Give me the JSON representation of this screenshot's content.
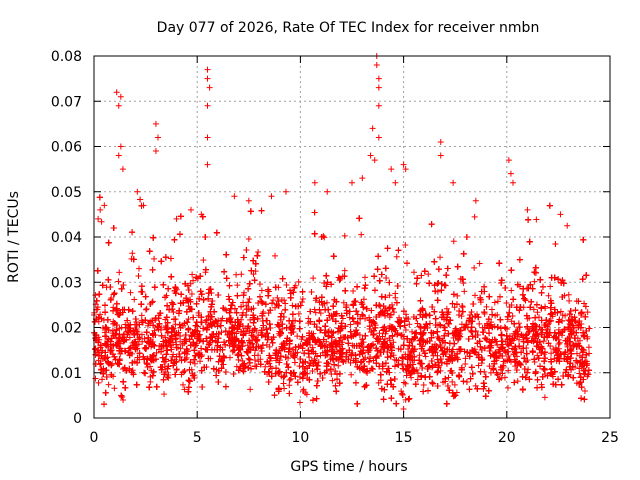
{
  "chart_data": {
    "type": "scatter",
    "title": "Day 077 of 2026, Rate Of TEC Index for receiver nmbn",
    "xlabel": "GPS time / hours",
    "ylabel": "ROTI / TECUs",
    "xlim": [
      0,
      25
    ],
    "ylim": [
      0,
      0.08
    ],
    "xticks": [
      "0",
      "5",
      "10",
      "15",
      "20",
      "25"
    ],
    "yticks": [
      "0",
      "0.01",
      "0.02",
      "0.03",
      "0.04",
      "0.05",
      "0.06",
      "0.07",
      "0.08"
    ],
    "grid": true,
    "marker": "+",
    "color": "#ff0000",
    "baseline": [
      [
        0,
        0.016
      ],
      [
        2,
        0.016
      ],
      [
        4,
        0.017
      ],
      [
        6,
        0.018
      ],
      [
        8,
        0.017
      ],
      [
        10,
        0.015
      ],
      [
        12,
        0.016
      ],
      [
        14,
        0.017
      ],
      [
        15,
        0.013
      ],
      [
        16,
        0.015
      ],
      [
        18,
        0.016
      ],
      [
        20,
        0.016
      ],
      [
        22,
        0.016
      ],
      [
        24,
        0.015
      ]
    ],
    "points": [
      [
        1.1,
        0.072
      ],
      [
        1.2,
        0.069
      ],
      [
        1.3,
        0.071
      ],
      [
        1.2,
        0.058
      ],
      [
        1.3,
        0.06
      ],
      [
        1.4,
        0.055
      ],
      [
        3.0,
        0.065
      ],
      [
        3.0,
        0.059
      ],
      [
        3.1,
        0.062
      ],
      [
        2.1,
        0.05
      ],
      [
        2.4,
        0.047
      ],
      [
        5.5,
        0.077
      ],
      [
        5.5,
        0.075
      ],
      [
        5.6,
        0.073
      ],
      [
        5.5,
        0.069
      ],
      [
        5.5,
        0.062
      ],
      [
        5.5,
        0.056
      ],
      [
        5.2,
        0.045
      ],
      [
        6.8,
        0.049
      ],
      [
        7.5,
        0.048
      ],
      [
        8.6,
        0.049
      ],
      [
        9.3,
        0.05
      ],
      [
        10.7,
        0.052
      ],
      [
        11.3,
        0.05
      ],
      [
        12.5,
        0.052
      ],
      [
        13.0,
        0.053
      ],
      [
        13.5,
        0.064
      ],
      [
        13.7,
        0.08
      ],
      [
        13.7,
        0.078
      ],
      [
        13.8,
        0.075
      ],
      [
        13.8,
        0.073
      ],
      [
        13.8,
        0.069
      ],
      [
        13.8,
        0.062
      ],
      [
        13.4,
        0.058
      ],
      [
        13.6,
        0.057
      ],
      [
        14.4,
        0.055
      ],
      [
        14.6,
        0.052
      ],
      [
        15.0,
        0.056
      ],
      [
        15.1,
        0.055
      ],
      [
        16.8,
        0.061
      ],
      [
        16.8,
        0.058
      ],
      [
        17.4,
        0.052
      ],
      [
        18.5,
        0.048
      ],
      [
        20.1,
        0.057
      ],
      [
        20.2,
        0.054
      ],
      [
        20.3,
        0.052
      ],
      [
        21.0,
        0.046
      ],
      [
        22.6,
        0.045
      ],
      [
        0.2,
        0.044
      ],
      [
        0.3,
        0.046
      ],
      [
        0.5,
        0.047
      ],
      [
        4.0,
        0.044
      ],
      [
        4.7,
        0.046
      ],
      [
        15.0,
        0.002
      ],
      [
        15.1,
        0.004
      ]
    ]
  }
}
